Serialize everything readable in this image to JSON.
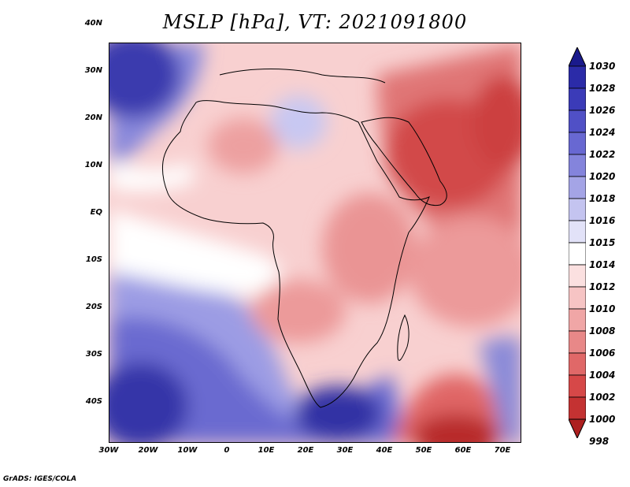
{
  "title": "MSLP [hPa], VT: 2021091800",
  "footer": "GrADS: IGES/COLA",
  "lat_labels": [
    "40N",
    "30N",
    "20N",
    "10N",
    "EQ",
    "10S",
    "20S",
    "30S",
    "40S"
  ],
  "lon_labels": [
    "30W",
    "20W",
    "10W",
    "0",
    "10E",
    "20E",
    "30E",
    "40E",
    "50E",
    "60E",
    "70E"
  ],
  "colorbar": {
    "levels": [
      "1030",
      "1028",
      "1026",
      "1024",
      "1022",
      "1020",
      "1018",
      "1016",
      "1015",
      "1014",
      "1012",
      "1010",
      "1008",
      "1006",
      "1004",
      "1002",
      "1000",
      "998"
    ],
    "colors": [
      "#1a1a8c",
      "#2b2ba8",
      "#3b3bb8",
      "#5050c6",
      "#6868d2",
      "#8484dc",
      "#a4a4e6",
      "#c4c4f0",
      "#e2e2f8",
      "#ffffff",
      "#fbe0e0",
      "#f6c4c4",
      "#f0a6a6",
      "#e88888",
      "#e06868",
      "#d64848",
      "#c43232",
      "#ad1f1f"
    ]
  },
  "colors": {
    "ocean_high_dark": "#3a3aae",
    "ocean_high_mid": "#7373d4",
    "ocean_high_light": "#b8b8ee",
    "neutral": "#ffffff",
    "low_light": "#f6c8c8",
    "low_mid": "#ec9c9c",
    "low_dark": "#d95454",
    "low_deep": "#b82a2a"
  }
}
